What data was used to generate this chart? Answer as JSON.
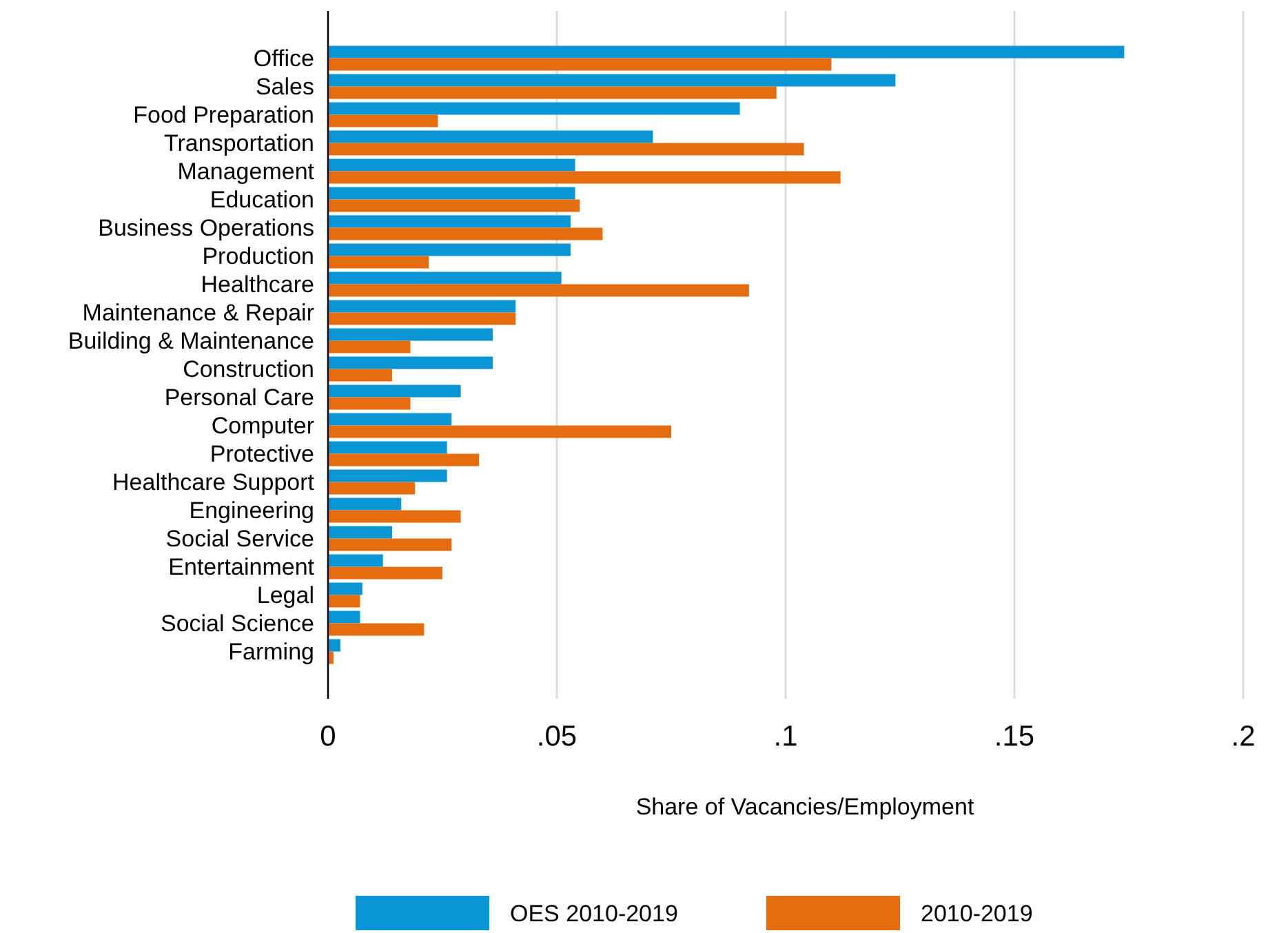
{
  "chart_data": {
    "type": "bar",
    "orientation": "horizontal",
    "xlabel": "Share of Vacancies/Employment",
    "categories": [
      "Office",
      "Sales",
      "Food Preparation",
      "Transportation",
      "Management",
      "Education",
      "Business Operations",
      "Production",
      "Healthcare",
      "Maintenance & Repair",
      "Building & Maintenance",
      "Construction",
      "Personal Care",
      "Computer",
      "Protective",
      "Healthcare Support",
      "Engineering",
      "Social Service",
      "Entertainment",
      "Legal",
      "Social Science",
      "Farming"
    ],
    "series": [
      {
        "name": "OES 2010-2019",
        "color": "#0a95d5",
        "values": [
          0.174,
          0.124,
          0.09,
          0.071,
          0.054,
          0.054,
          0.053,
          0.053,
          0.051,
          0.041,
          0.036,
          0.036,
          0.029,
          0.027,
          0.026,
          0.026,
          0.016,
          0.014,
          0.012,
          0.0075,
          0.007,
          0.0027
        ]
      },
      {
        "name": "2010-2019",
        "color": "#e56d0f",
        "values": [
          0.11,
          0.098,
          0.024,
          0.104,
          0.112,
          0.055,
          0.06,
          0.022,
          0.092,
          0.041,
          0.018,
          0.014,
          0.018,
          0.075,
          0.033,
          0.019,
          0.029,
          0.027,
          0.025,
          0.007,
          0.021,
          0.0012
        ]
      }
    ],
    "xlim": [
      0,
      0.2
    ],
    "xticks": [
      0,
      {
        "value": 0.05,
        "label": ".05"
      },
      {
        "value": 0.1,
        "label": ".1"
      },
      {
        "value": 0.15,
        "label": ".15"
      },
      {
        "value": 0.2,
        "label": ".2"
      }
    ],
    "grid": "x",
    "legend": "bottom"
  }
}
